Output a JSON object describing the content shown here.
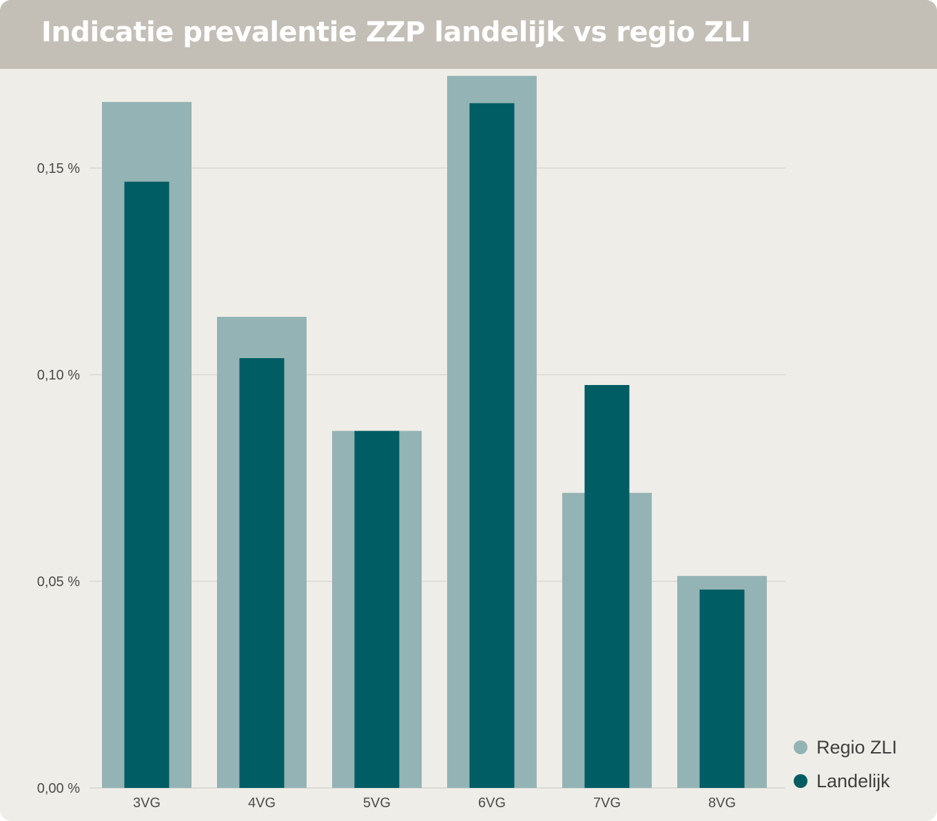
{
  "header": {
    "title": "Indicatie prevalentie ZZP landelijk vs regio ZLI"
  },
  "colors": {
    "regio": "#94b3b4",
    "landelijk": "#005d63",
    "grid": "#d6d4cf",
    "background": "#efede8",
    "header": "#c3bfb7"
  },
  "chart_data": {
    "type": "bar",
    "categories": [
      "3VG",
      "4VG",
      "5VG",
      "6VG",
      "7VG",
      "8VG"
    ],
    "series": [
      {
        "name": "Regio ZLI",
        "values": [
          0.166,
          0.114,
          0.0864,
          0.1723,
          0.0714,
          0.0513
        ]
      },
      {
        "name": "Landelijk",
        "values": [
          0.1467,
          0.104,
          0.0864,
          0.1657,
          0.0975,
          0.048
        ]
      }
    ],
    "yticks": [
      0,
      0.05,
      0.1,
      0.15
    ],
    "ytick_labels": [
      "0,00 %",
      "0,05 %",
      "0,10 %",
      "0,15 %"
    ],
    "ylim": [
      0,
      0.175
    ],
    "grid": true,
    "legend_position": "bottom-right",
    "overlapping_bars": true
  }
}
